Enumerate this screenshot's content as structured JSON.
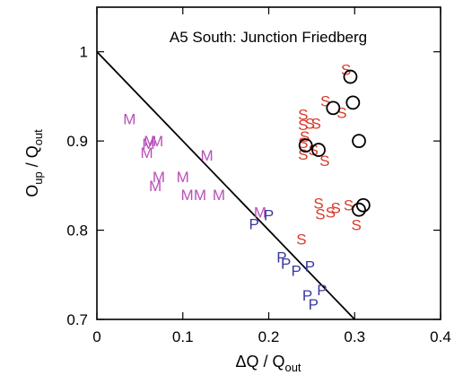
{
  "chart_data": {
    "type": "scatter",
    "title": "A5 South: Junction Friedberg",
    "xlabel": {
      "prefix": "ΔQ / Q",
      "sub": "out"
    },
    "ylabel": {
      "part1": "O",
      "sub1": "up",
      "part2": " / Q",
      "sub2": "out"
    },
    "xlim": [
      0,
      0.4
    ],
    "ylim": [
      0.7,
      1.05
    ],
    "xticks": [
      {
        "value": 0,
        "label": "0"
      },
      {
        "value": 0.1,
        "label": "0.1"
      },
      {
        "value": 0.2,
        "label": "0.2"
      },
      {
        "value": 0.3,
        "label": "0.3"
      },
      {
        "value": 0.4,
        "label": "0.4"
      }
    ],
    "yticks": [
      {
        "value": 0.7,
        "label": "0.7"
      },
      {
        "value": 0.8,
        "label": "0.8"
      },
      {
        "value": 0.9,
        "label": "0.9"
      },
      {
        "value": 1.0,
        "label": "1"
      }
    ],
    "grid": false,
    "line": {
      "x": [
        0,
        0.3
      ],
      "y": [
        1.0,
        0.7
      ],
      "color": "#000000"
    },
    "series": [
      {
        "marker": "M",
        "color": "#b84fb8",
        "points": [
          [
            0.038,
            0.925
          ],
          [
            0.058,
            0.887
          ],
          [
            0.06,
            0.897
          ],
          [
            0.062,
            0.9
          ],
          [
            0.07,
            0.9
          ],
          [
            0.068,
            0.85
          ],
          [
            0.072,
            0.86
          ],
          [
            0.1,
            0.86
          ],
          [
            0.105,
            0.84
          ],
          [
            0.12,
            0.84
          ],
          [
            0.128,
            0.884
          ],
          [
            0.142,
            0.84
          ],
          [
            0.19,
            0.82
          ]
        ]
      },
      {
        "marker": "P",
        "color": "#3a3aa0",
        "points": [
          [
            0.183,
            0.807
          ],
          [
            0.2,
            0.817
          ],
          [
            0.215,
            0.77
          ],
          [
            0.22,
            0.763
          ],
          [
            0.232,
            0.755
          ],
          [
            0.248,
            0.76
          ],
          [
            0.262,
            0.733
          ],
          [
            0.245,
            0.727
          ],
          [
            0.252,
            0.717
          ]
        ]
      },
      {
        "marker": "S",
        "color": "#d93a2a",
        "points": [
          [
            0.29,
            0.98
          ],
          [
            0.24,
            0.93
          ],
          [
            0.24,
            0.918
          ],
          [
            0.242,
            0.905
          ],
          [
            0.248,
            0.92
          ],
          [
            0.255,
            0.92
          ],
          [
            0.266,
            0.945
          ],
          [
            0.285,
            0.932
          ],
          [
            0.24,
            0.898
          ],
          [
            0.24,
            0.885
          ],
          [
            0.252,
            0.89
          ],
          [
            0.265,
            0.878
          ],
          [
            0.258,
            0.83
          ],
          [
            0.26,
            0.818
          ],
          [
            0.272,
            0.82
          ],
          [
            0.278,
            0.825
          ],
          [
            0.293,
            0.828
          ],
          [
            0.238,
            0.79
          ],
          [
            0.302,
            0.806
          ]
        ]
      },
      {
        "marker": "O",
        "color": "#000000",
        "points": [
          [
            0.295,
            0.972
          ],
          [
            0.298,
            0.943
          ],
          [
            0.275,
            0.937
          ],
          [
            0.243,
            0.895
          ],
          [
            0.258,
            0.89
          ],
          [
            0.305,
            0.9
          ],
          [
            0.31,
            0.828
          ],
          [
            0.305,
            0.823
          ]
        ]
      }
    ]
  }
}
